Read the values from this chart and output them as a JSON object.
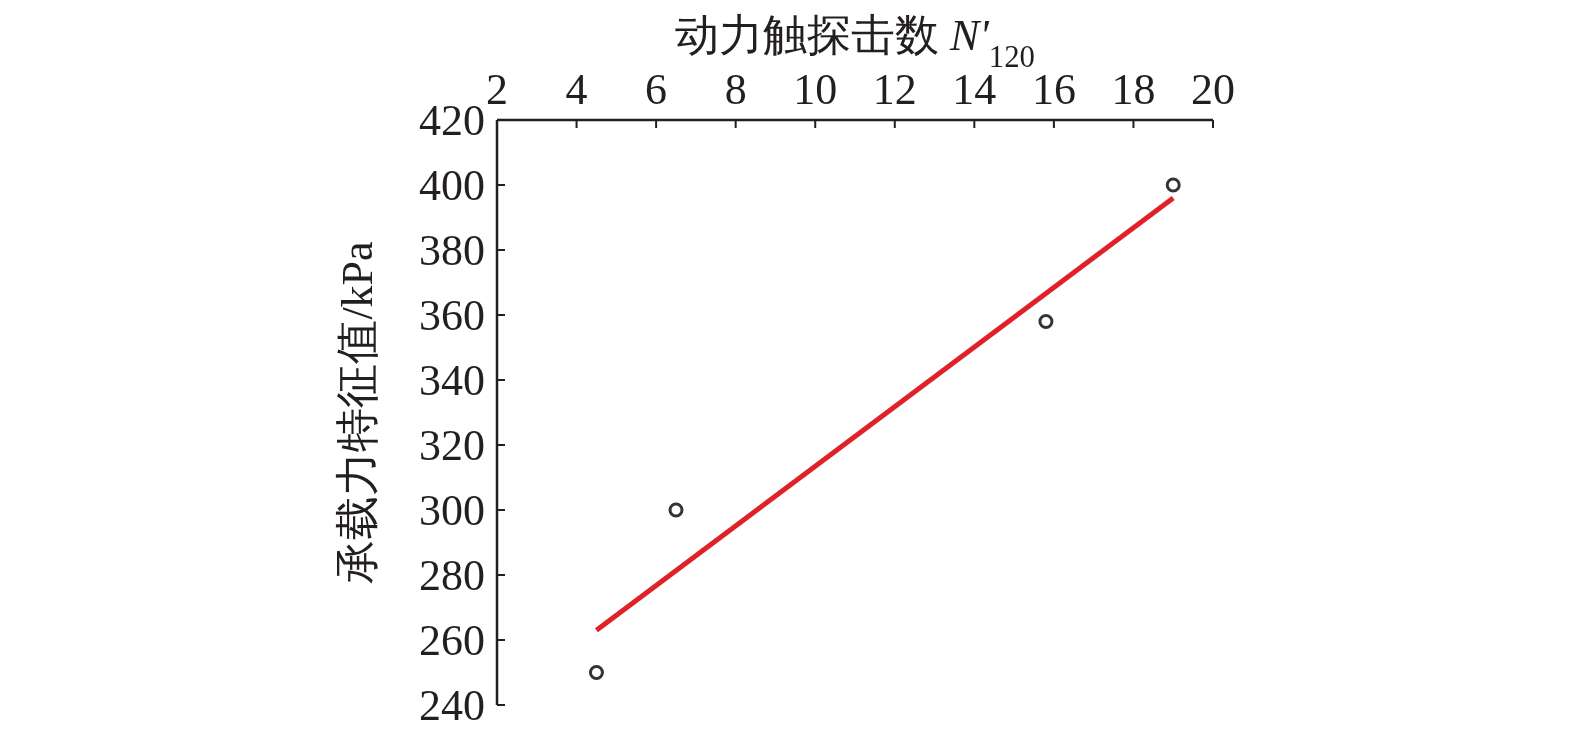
{
  "chart_data": {
    "type": "scatter",
    "xlabel": "动力触探击数 N'$_{120}$",
    "ylabel": "承载力特征值/kPa",
    "xlim": [
      2,
      20
    ],
    "xticks": [
      2,
      4,
      6,
      8,
      10,
      12,
      14,
      16,
      18,
      20
    ],
    "ylim": [
      240,
      420
    ],
    "yticks": [
      240,
      260,
      280,
      300,
      320,
      340,
      360,
      380,
      400,
      420
    ],
    "grid": false,
    "series": [
      {
        "type": "scatter",
        "marker": "circle",
        "color": "#333333",
        "x": [
          4.5,
          6.5,
          15.8,
          19.0
        ],
        "values": [
          250,
          300,
          358,
          400
        ]
      },
      {
        "type": "line",
        "color": "#e02228",
        "x": [
          4.5,
          19.0
        ],
        "values": [
          263,
          396
        ]
      }
    ]
  }
}
